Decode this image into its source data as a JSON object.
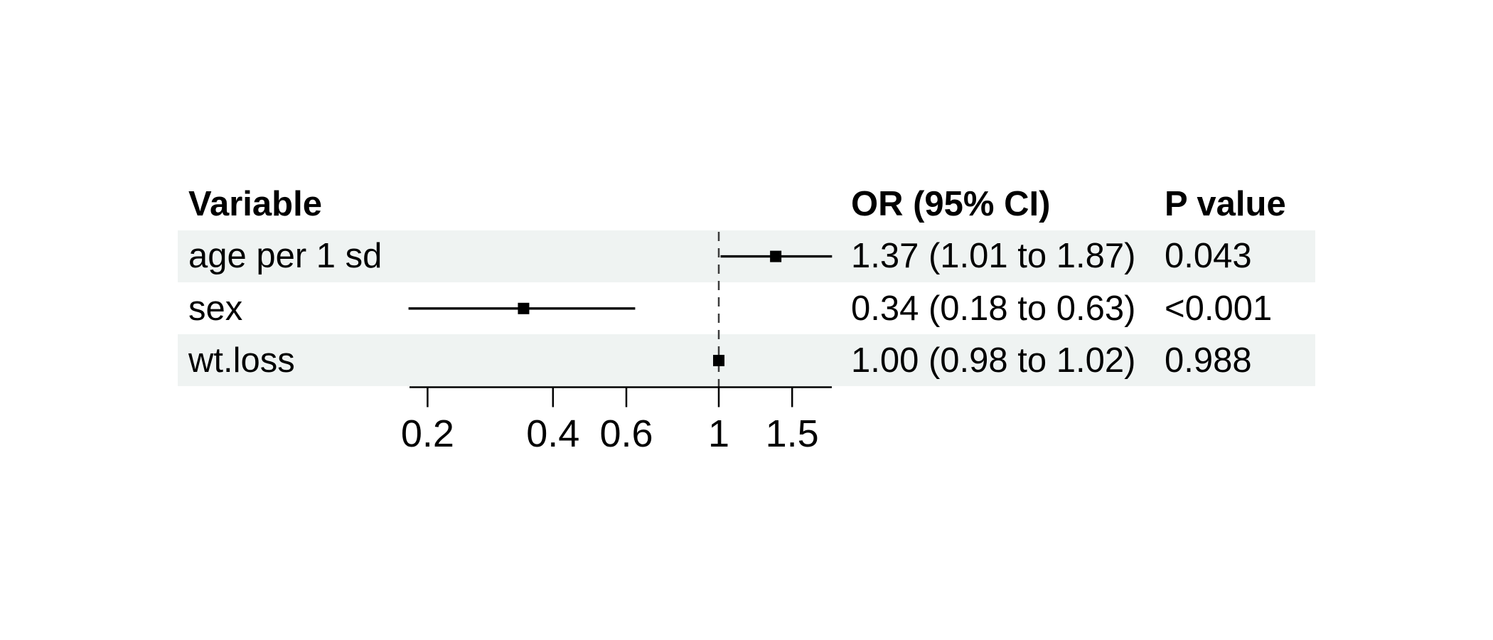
{
  "table": {
    "headers": [
      {
        "label": "Variable"
      },
      {
        "label": "OR (95% CI)"
      },
      {
        "label": "P value"
      }
    ],
    "rows": [
      {
        "variable": "age per 1 sd",
        "or_ci": "1.37 (1.01 to 1.87)",
        "p": "0.043"
      },
      {
        "variable": "sex",
        "or_ci": "0.34 (0.18 to 0.63)",
        "p": "<0.001"
      },
      {
        "variable": "wt.loss",
        "or_ci": "1.00 (0.98 to 1.02)",
        "p": "0.988"
      }
    ]
  },
  "chart_data": {
    "type": "forest",
    "x_scale": "log",
    "reference_line": 1,
    "x_ticks": [
      0.2,
      0.4,
      0.6,
      1,
      1.5
    ],
    "x_tick_labels": [
      "0.2",
      "0.4",
      "0.6",
      "1",
      "1.5"
    ],
    "x_range": [
      0.18,
      1.87
    ],
    "series": [
      {
        "name": "age per 1 sd",
        "or": 1.37,
        "ci_low": 1.01,
        "ci_high": 1.87,
        "p_value": "0.043"
      },
      {
        "name": "sex",
        "or": 0.34,
        "ci_low": 0.18,
        "ci_high": 0.63,
        "p_value": "<0.001"
      },
      {
        "name": "wt.loss",
        "or": 1.0,
        "ci_low": 0.98,
        "ci_high": 1.02,
        "p_value": "0.988"
      }
    ]
  },
  "colors": {
    "row_band": "#eff3f2",
    "text": "#000000",
    "axis": "#000000",
    "reference_line": "#3c3c3c"
  }
}
